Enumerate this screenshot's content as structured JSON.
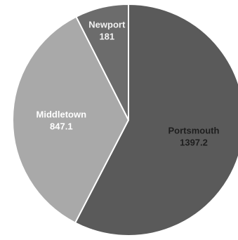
{
  "chart_data": {
    "type": "pie",
    "start_angle_deg": 0,
    "direction": "clockwise",
    "slices": [
      {
        "label": "Portsmouth",
        "value_text": "1397.2",
        "value": 1397.2,
        "color": "#5a5a5a",
        "label_color": "#1e1e1e"
      },
      {
        "label": "Middletown",
        "value_text": "847.1",
        "value": 847.1,
        "color": "#a9a9a9",
        "label_color": "#ffffff"
      },
      {
        "label": "Newport",
        "value_text": "181",
        "value": 181,
        "color": "#6c6c6c",
        "label_color": "#f2f2f2"
      }
    ],
    "slice_border_color": "#ffffff"
  }
}
